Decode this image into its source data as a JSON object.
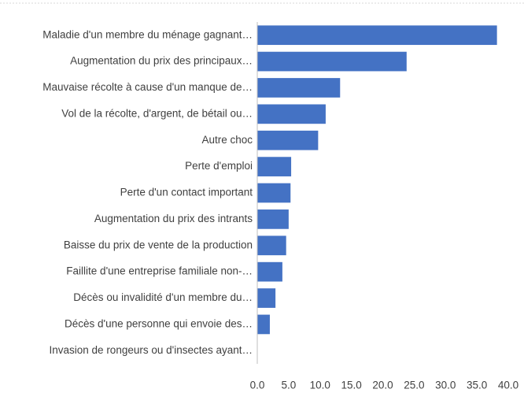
{
  "chart_data": {
    "type": "bar",
    "orientation": "horizontal",
    "categories": [
      "Maladie d'un membre du ménage gagnant…",
      "Augmentation du prix des principaux…",
      "Mauvaise récolte à cause d'un manque de…",
      "Vol de la récolte, d'argent, de bétail ou…",
      "Autre choc",
      "Perte d'emploi",
      "Perte d'un contact important",
      "Augmentation du prix des intrants",
      "Baisse du prix de vente de la production",
      "Faillite d'une entreprise familiale non-…",
      "Décès ou invalidité d'un membre du…",
      "Décès d'une personne qui envoie des…",
      "Invasion de rongeurs ou d'insectes ayant…"
    ],
    "values": [
      38.2,
      23.8,
      13.2,
      10.9,
      9.7,
      5.4,
      5.3,
      5.0,
      4.6,
      4.0,
      2.9,
      2.0,
      0
    ],
    "color": "#4472c4",
    "xlim": [
      0,
      40
    ],
    "xticks": [
      {
        "value": 0,
        "label": "0.0"
      },
      {
        "value": 5,
        "label": "5.0"
      },
      {
        "value": 10,
        "label": "10.0"
      },
      {
        "value": 15,
        "label": "15.0"
      },
      {
        "value": 20,
        "label": "20.0"
      },
      {
        "value": 25,
        "label": "25.0"
      },
      {
        "value": 30,
        "label": "30.0"
      },
      {
        "value": 35,
        "label": "35.0"
      },
      {
        "value": 40,
        "label": "40.0"
      }
    ],
    "grid": false
  }
}
